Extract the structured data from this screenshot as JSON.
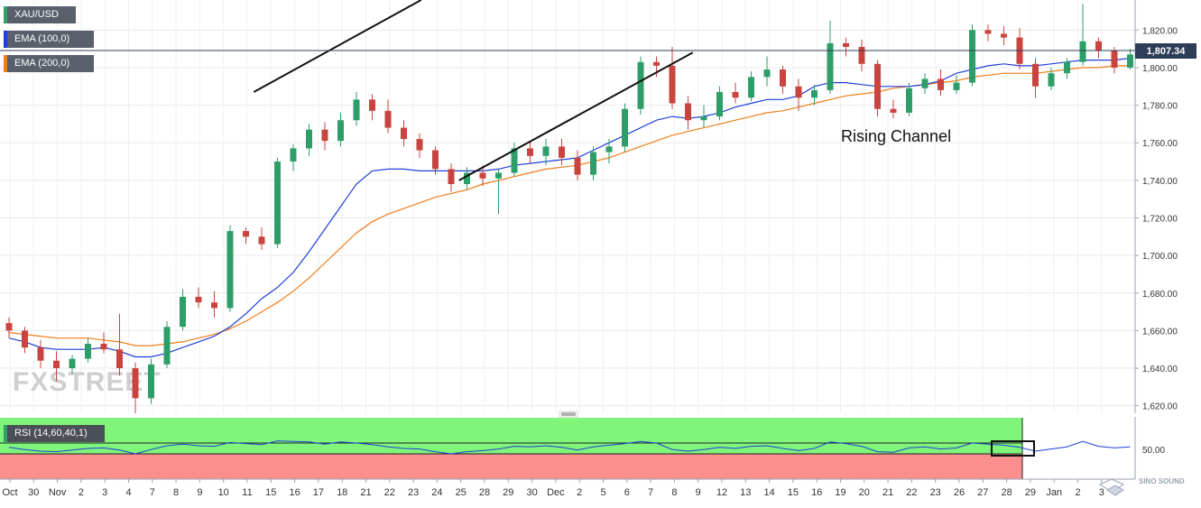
{
  "legend": {
    "symbol": "XAU/USD",
    "ema100": "EMA (100,0)",
    "ema200": "EMA (200,0)",
    "ema100_color": "#1f3fd8",
    "ema200_color": "#ef7d1a"
  },
  "price_tag": "1,807.34",
  "annotation": "Rising Channel",
  "watermark": "FXSTREET",
  "rsi": {
    "label": "RSI (14,60,40,1)",
    "tick": "50.00",
    "overbought_color": "#7ff57a",
    "oversold_color": "#fb8f8f"
  },
  "corner_logo": "SINO SOUND",
  "chart_data": {
    "type": "candlestick",
    "title": "",
    "y_ticks": [
      "1,620.00",
      "1,640.00",
      "1,660.00",
      "1,680.00",
      "1,700.00",
      "1,720.00",
      "1,740.00",
      "1,760.00",
      "1,780.00",
      "1,800.00",
      "1,820.00"
    ],
    "ylim": [
      1616,
      1836
    ],
    "x_ticks": [
      "Oct",
      "30",
      "Nov",
      "2",
      "3",
      "4",
      "7",
      "8",
      "9",
      "10",
      "11",
      "15",
      "16",
      "17",
      "18",
      "21",
      "22",
      "23",
      "24",
      "25",
      "28",
      "29",
      "30",
      "Dec",
      "2",
      "5",
      "6",
      "7",
      "8",
      "9",
      "12",
      "13",
      "14",
      "15",
      "16",
      "19",
      "20",
      "21",
      "22",
      "23",
      "26",
      "27",
      "28",
      "29",
      "Jan",
      "2",
      "3"
    ],
    "current_price": 1807.34,
    "candles": [
      {
        "o": 1664,
        "h": 1667,
        "l": 1656,
        "c": 1660
      },
      {
        "o": 1660,
        "h": 1662,
        "l": 1648,
        "c": 1651
      },
      {
        "o": 1651,
        "h": 1655,
        "l": 1640,
        "c": 1644
      },
      {
        "o": 1644,
        "h": 1649,
        "l": 1633,
        "c": 1640
      },
      {
        "o": 1640,
        "h": 1647,
        "l": 1637,
        "c": 1645
      },
      {
        "o": 1645,
        "h": 1656,
        "l": 1643,
        "c": 1653
      },
      {
        "o": 1653,
        "h": 1659,
        "l": 1648,
        "c": 1650
      },
      {
        "o": 1650,
        "h": 1669,
        "l": 1636,
        "c": 1640
      },
      {
        "o": 1640,
        "h": 1643,
        "l": 1616,
        "c": 1624
      },
      {
        "o": 1624,
        "h": 1645,
        "l": 1621,
        "c": 1642
      },
      {
        "o": 1642,
        "h": 1665,
        "l": 1640,
        "c": 1662
      },
      {
        "o": 1662,
        "h": 1682,
        "l": 1660,
        "c": 1678
      },
      {
        "o": 1678,
        "h": 1683,
        "l": 1672,
        "c": 1675
      },
      {
        "o": 1675,
        "h": 1681,
        "l": 1667,
        "c": 1672
      },
      {
        "o": 1672,
        "h": 1716,
        "l": 1670,
        "c": 1713
      },
      {
        "o": 1713,
        "h": 1715,
        "l": 1706,
        "c": 1710
      },
      {
        "o": 1710,
        "h": 1715,
        "l": 1703,
        "c": 1706
      },
      {
        "o": 1706,
        "h": 1752,
        "l": 1704,
        "c": 1750
      },
      {
        "o": 1750,
        "h": 1759,
        "l": 1745,
        "c": 1757
      },
      {
        "o": 1757,
        "h": 1770,
        "l": 1753,
        "c": 1767
      },
      {
        "o": 1767,
        "h": 1771,
        "l": 1756,
        "c": 1761
      },
      {
        "o": 1761,
        "h": 1776,
        "l": 1758,
        "c": 1772
      },
      {
        "o": 1772,
        "h": 1787,
        "l": 1769,
        "c": 1783
      },
      {
        "o": 1783,
        "h": 1786,
        "l": 1772,
        "c": 1777
      },
      {
        "o": 1777,
        "h": 1783,
        "l": 1765,
        "c": 1768
      },
      {
        "o": 1768,
        "h": 1772,
        "l": 1758,
        "c": 1762
      },
      {
        "o": 1762,
        "h": 1765,
        "l": 1752,
        "c": 1756
      },
      {
        "o": 1756,
        "h": 1758,
        "l": 1743,
        "c": 1746
      },
      {
        "o": 1746,
        "h": 1749,
        "l": 1734,
        "c": 1738
      },
      {
        "o": 1738,
        "h": 1747,
        "l": 1735,
        "c": 1744
      },
      {
        "o": 1744,
        "h": 1748,
        "l": 1737,
        "c": 1741
      },
      {
        "o": 1741,
        "h": 1746,
        "l": 1722,
        "c": 1744
      },
      {
        "o": 1744,
        "h": 1760,
        "l": 1742,
        "c": 1757
      },
      {
        "o": 1757,
        "h": 1761,
        "l": 1749,
        "c": 1753
      },
      {
        "o": 1753,
        "h": 1762,
        "l": 1748,
        "c": 1758
      },
      {
        "o": 1758,
        "h": 1762,
        "l": 1748,
        "c": 1752
      },
      {
        "o": 1752,
        "h": 1756,
        "l": 1740,
        "c": 1743
      },
      {
        "o": 1743,
        "h": 1758,
        "l": 1740,
        "c": 1755
      },
      {
        "o": 1755,
        "h": 1762,
        "l": 1749,
        "c": 1758
      },
      {
        "o": 1758,
        "h": 1781,
        "l": 1755,
        "c": 1778
      },
      {
        "o": 1778,
        "h": 1806,
        "l": 1775,
        "c": 1803
      },
      {
        "o": 1803,
        "h": 1806,
        "l": 1795,
        "c": 1801
      },
      {
        "o": 1801,
        "h": 1811,
        "l": 1778,
        "c": 1781
      },
      {
        "o": 1781,
        "h": 1785,
        "l": 1767,
        "c": 1772
      },
      {
        "o": 1772,
        "h": 1780,
        "l": 1768,
        "c": 1774
      },
      {
        "o": 1774,
        "h": 1790,
        "l": 1772,
        "c": 1787
      },
      {
        "o": 1787,
        "h": 1792,
        "l": 1781,
        "c": 1784
      },
      {
        "o": 1784,
        "h": 1798,
        "l": 1782,
        "c": 1795
      },
      {
        "o": 1795,
        "h": 1806,
        "l": 1790,
        "c": 1799
      },
      {
        "o": 1799,
        "h": 1801,
        "l": 1786,
        "c": 1790
      },
      {
        "o": 1790,
        "h": 1794,
        "l": 1777,
        "c": 1784
      },
      {
        "o": 1784,
        "h": 1791,
        "l": 1780,
        "c": 1788
      },
      {
        "o": 1788,
        "h": 1825,
        "l": 1786,
        "c": 1813
      },
      {
        "o": 1813,
        "h": 1816,
        "l": 1806,
        "c": 1811
      },
      {
        "o": 1811,
        "h": 1815,
        "l": 1798,
        "c": 1802
      },
      {
        "o": 1802,
        "h": 1804,
        "l": 1774,
        "c": 1778
      },
      {
        "o": 1778,
        "h": 1783,
        "l": 1773,
        "c": 1776
      },
      {
        "o": 1776,
        "h": 1792,
        "l": 1774,
        "c": 1789
      },
      {
        "o": 1789,
        "h": 1797,
        "l": 1786,
        "c": 1794
      },
      {
        "o": 1794,
        "h": 1799,
        "l": 1785,
        "c": 1788
      },
      {
        "o": 1788,
        "h": 1796,
        "l": 1786,
        "c": 1792
      },
      {
        "o": 1792,
        "h": 1823,
        "l": 1790,
        "c": 1820
      },
      {
        "o": 1820,
        "h": 1823,
        "l": 1814,
        "c": 1818
      },
      {
        "o": 1818,
        "h": 1822,
        "l": 1812,
        "c": 1816
      },
      {
        "o": 1816,
        "h": 1821,
        "l": 1799,
        "c": 1802
      },
      {
        "o": 1802,
        "h": 1805,
        "l": 1784,
        "c": 1790
      },
      {
        "o": 1790,
        "h": 1800,
        "l": 1788,
        "c": 1797
      },
      {
        "o": 1797,
        "h": 1805,
        "l": 1794,
        "c": 1803
      },
      {
        "o": 1803,
        "h": 1834,
        "l": 1801,
        "c": 1814
      },
      {
        "o": 1814,
        "h": 1816,
        "l": 1805,
        "c": 1809
      },
      {
        "o": 1809,
        "h": 1811,
        "l": 1797,
        "c": 1800
      },
      {
        "o": 1800,
        "h": 1810,
        "l": 1799,
        "c": 1807
      }
    ],
    "ema100": [
      1656,
      1654,
      1651,
      1650,
      1650,
      1650,
      1651,
      1649,
      1646,
      1646,
      1648,
      1651,
      1654,
      1657,
      1662,
      1669,
      1677,
      1683,
      1691,
      1702,
      1714,
      1726,
      1738,
      1745,
      1746,
      1746,
      1745,
      1745,
      1745,
      1745,
      1745,
      1746,
      1748,
      1749,
      1750,
      1751,
      1752,
      1756,
      1760,
      1764,
      1768,
      1772,
      1774,
      1773,
      1774,
      1776,
      1779,
      1781,
      1783,
      1783,
      1785,
      1790,
      1792,
      1792,
      1791,
      1790,
      1790,
      1790,
      1791,
      1793,
      1797,
      1799,
      1801,
      1802,
      1801,
      1801,
      1802,
      1803,
      1804,
      1804,
      1804,
      1805
    ],
    "ema200": [
      1659,
      1658,
      1657,
      1656,
      1656,
      1656,
      1655,
      1654,
      1652,
      1652,
      1653,
      1654,
      1656,
      1658,
      1661,
      1665,
      1670,
      1675,
      1681,
      1688,
      1696,
      1704,
      1712,
      1718,
      1722,
      1725,
      1728,
      1731,
      1733,
      1735,
      1738,
      1740,
      1742,
      1744,
      1746,
      1747,
      1748,
      1750,
      1752,
      1755,
      1758,
      1761,
      1764,
      1766,
      1768,
      1770,
      1772,
      1774,
      1776,
      1777,
      1779,
      1781,
      1783,
      1785,
      1786,
      1787,
      1789,
      1790,
      1791,
      1792,
      1793,
      1795,
      1796,
      1797,
      1797,
      1797,
      1798,
      1799,
      1800,
      1800,
      1801,
      1801
    ],
    "channel": {
      "upper": [
        {
          "x": 15.5,
          "y": 1787
        },
        {
          "x": 26.1,
          "y": 1836
        }
      ],
      "lower": [
        {
          "x": 28.5,
          "y": 1740
        },
        {
          "x": 43.3,
          "y": 1808
        }
      ]
    },
    "rsi_values": [
      52,
      48,
      45,
      44,
      47,
      50,
      51,
      47,
      40,
      48,
      55,
      58,
      55,
      54,
      61,
      59,
      57,
      64,
      63,
      62,
      58,
      62,
      60,
      57,
      53,
      50,
      49,
      44,
      40,
      44,
      46,
      49,
      54,
      53,
      55,
      52,
      47,
      53,
      56,
      59,
      63,
      60,
      48,
      45,
      48,
      52,
      50,
      54,
      55,
      50,
      46,
      50,
      62,
      59,
      54,
      44,
      43,
      51,
      53,
      49,
      51,
      60,
      58,
      56,
      52,
      45,
      49,
      53,
      63,
      54,
      51,
      53
    ],
    "rsi_levels": {
      "upper": 60,
      "lower": 40,
      "mid": 50
    }
  }
}
